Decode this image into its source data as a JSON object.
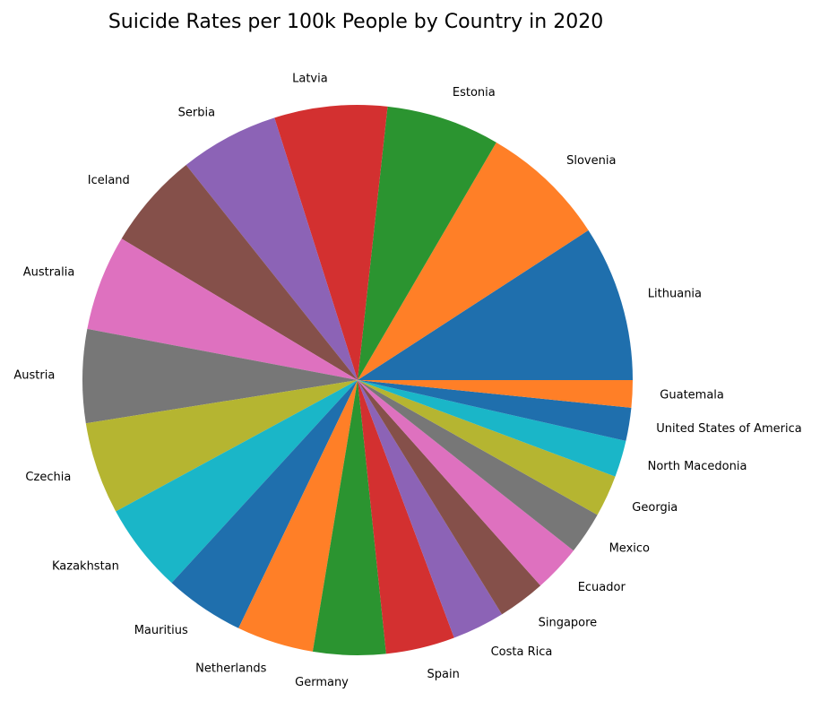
{
  "chart_data": {
    "type": "pie",
    "title": "Suicide Rates per 100k People by Country in 2020",
    "categories": [
      "Lithuania",
      "Slovenia",
      "Estonia",
      "Latvia",
      "Serbia",
      "Iceland",
      "Australia",
      "Austria",
      "Czechia",
      "Kazakhstan",
      "Mauritius",
      "Netherlands",
      "Germany",
      "Spain",
      "Costa Rica",
      "Singapore",
      "Ecuador",
      "Mexico",
      "Georgia",
      "North Macedonia",
      "United States of America",
      "Guatemala"
    ],
    "values": [
      21.7,
      17.6,
      15.8,
      15.7,
      13.8,
      13.5,
      13.3,
      13.0,
      12.8,
      12.5,
      11.1,
      10.7,
      10.1,
      9.6,
      7.3,
      6.6,
      6.6,
      5.9,
      5.8,
      5.1,
      4.6,
      3.8
    ],
    "colors": [
      "#1f6fad",
      "#ff7f27",
      "#2b9430",
      "#d33030",
      "#8c63b6",
      "#85504a",
      "#de71bf",
      "#777777",
      "#b5b531",
      "#1ab6c8",
      "#1f6fad",
      "#ff7f27",
      "#2b9430",
      "#d33030",
      "#8c63b6",
      "#85504a",
      "#de71bf",
      "#777777",
      "#b5b531",
      "#1ab6c8",
      "#1f6fad",
      "#ff7f27"
    ],
    "start_angle_deg": 0,
    "direction": "counterclockwise",
    "legend": "none"
  }
}
